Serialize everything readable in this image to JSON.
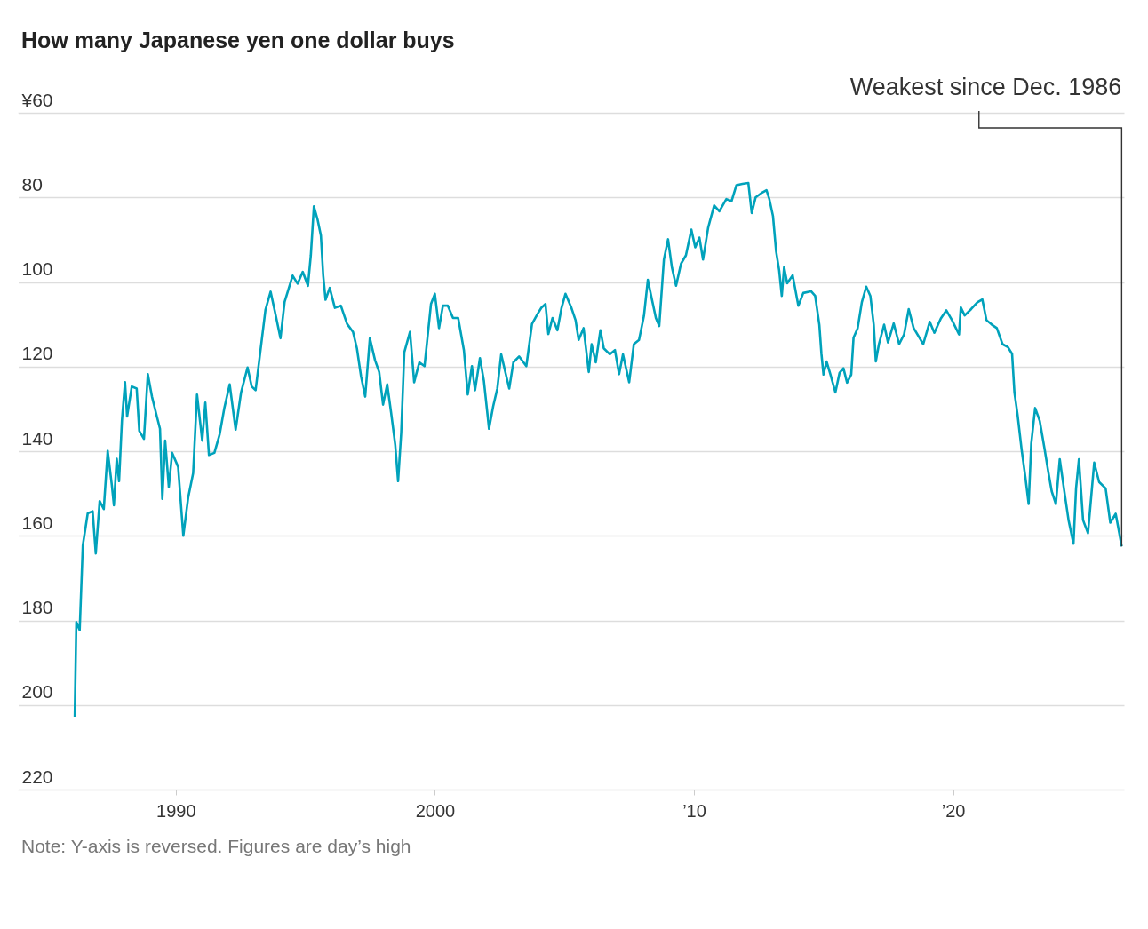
{
  "chart_data": {
    "type": "line",
    "title": "How many Japanese yen one dollar buys",
    "x": [
      1986.1,
      1986.16,
      1986.29,
      1986.41,
      1986.6,
      1986.79,
      1986.91,
      1987.06,
      1987.22,
      1987.37,
      1987.53,
      1987.61,
      1987.72,
      1987.81,
      1987.92,
      1988.04,
      1988.12,
      1988.3,
      1988.49,
      1988.59,
      1988.77,
      1988.92,
      1989.08,
      1989.27,
      1989.39,
      1989.48,
      1989.59,
      1989.73,
      1989.86,
      1990.09,
      1990.29,
      1990.48,
      1990.67,
      1990.82,
      1991.02,
      1991.14,
      1991.28,
      1991.49,
      1991.69,
      1991.87,
      1992.08,
      1992.31,
      1992.52,
      1992.77,
      1992.93,
      1993.08,
      1993.24,
      1993.46,
      1993.66,
      1993.86,
      1994.04,
      1994.2,
      1994.51,
      1994.7,
      1994.9,
      1995.1,
      1995.21,
      1995.33,
      1995.47,
      1995.6,
      1995.69,
      1995.78,
      1995.94,
      1996.14,
      1996.37,
      1996.61,
      1996.84,
      1996.99,
      1997.15,
      1997.31,
      1997.49,
      1997.69,
      1997.85,
      1998.0,
      1998.16,
      1998.31,
      1998.47,
      1998.58,
      1998.7,
      1998.82,
      1999.04,
      1999.2,
      1999.4,
      1999.6,
      1999.85,
      2000.0,
      2000.16,
      2000.31,
      2000.5,
      2000.7,
      2000.9,
      2001.12,
      2001.27,
      2001.43,
      2001.55,
      2001.74,
      2001.89,
      2002.09,
      2002.25,
      2002.41,
      2002.56,
      2002.72,
      2002.87,
      2003.03,
      2003.25,
      2003.53,
      2003.75,
      2003.96,
      2004.11,
      2004.27,
      2004.38,
      2004.54,
      2004.73,
      2004.89,
      2005.04,
      2005.27,
      2005.43,
      2005.55,
      2005.74,
      2005.94,
      2006.05,
      2006.21,
      2006.39,
      2006.52,
      2006.75,
      2006.95,
      2007.11,
      2007.26,
      2007.5,
      2007.68,
      2007.88,
      2008.07,
      2008.22,
      2008.38,
      2008.53,
      2008.66,
      2008.84,
      2009.0,
      2009.15,
      2009.31,
      2009.5,
      2009.69,
      2009.9,
      2010.05,
      2010.21,
      2010.35,
      2010.55,
      2010.78,
      2010.98,
      2011.25,
      2011.45,
      2011.64,
      2011.87,
      2012.1,
      2012.23,
      2012.38,
      2012.6,
      2012.8,
      2012.91,
      2013.05,
      2013.17,
      2013.29,
      2013.39,
      2013.48,
      2013.6,
      2013.81,
      2014.03,
      2014.22,
      2014.52,
      2014.68,
      2014.84,
      2014.92,
      2015.0,
      2015.12,
      2015.27,
      2015.46,
      2015.62,
      2015.77,
      2015.91,
      2016.07,
      2016.16,
      2016.32,
      2016.48,
      2016.65,
      2016.81,
      2016.94,
      2017.02,
      2017.14,
      2017.34,
      2017.49,
      2017.71,
      2017.92,
      2018.11,
      2018.29,
      2018.48,
      2018.85,
      2019.1,
      2019.28,
      2019.53,
      2019.74,
      2019.96,
      2020.23,
      2020.3,
      2020.45,
      2020.7,
      2020.94,
      2021.13,
      2021.29,
      2021.5,
      2021.69,
      2021.91,
      2022.12,
      2022.28,
      2022.37,
      2022.49,
      2022.65,
      2022.8,
      2022.92,
      2023.02,
      2023.17,
      2023.35,
      2023.54,
      2023.68,
      2023.81,
      2023.97,
      2024.12,
      2024.28,
      2024.46,
      2024.65,
      2024.75,
      2024.86,
      2025.02,
      2025.21,
      2025.45,
      2025.64,
      2025.89,
      2026.07,
      2026.28,
      2026.44,
      2026.51
    ],
    "series": [
      {
        "color": "#00a2bb",
        "values": [
          202.8,
          180.4,
          182.3,
          162.3,
          154.7,
          154.2,
          164.2,
          151.8,
          153.7,
          139.9,
          148,
          152.8,
          141.8,
          147.1,
          132.8,
          123.7,
          131.8,
          124.7,
          125.2,
          135.2,
          137.1,
          121.8,
          127.1,
          131.8,
          134.7,
          151.3,
          137.5,
          148.5,
          140.4,
          143.7,
          160,
          150.9,
          145.2,
          126.6,
          137.5,
          128.5,
          140.9,
          140.4,
          136.1,
          129.9,
          124.2,
          134.9,
          126.1,
          120.2,
          124.7,
          125.6,
          117.6,
          106.6,
          102.3,
          108,
          113.3,
          104.7,
          98.5,
          100.4,
          97.6,
          100.9,
          93.8,
          82.1,
          85.2,
          89,
          98.5,
          104.2,
          101.4,
          106.1,
          105.6,
          109.9,
          111.8,
          115.7,
          122.3,
          127.1,
          113.3,
          118.5,
          121.3,
          129,
          124.2,
          130.9,
          138.5,
          147.1,
          135.7,
          116.6,
          111.8,
          123.7,
          119,
          119.9,
          105.2,
          102.8,
          110.9,
          105.6,
          105.6,
          108.5,
          108.5,
          116.1,
          126.6,
          119.9,
          125.6,
          118,
          123.3,
          134.7,
          129.4,
          125.2,
          117.1,
          121.3,
          125.2,
          119,
          117.6,
          119.9,
          109.9,
          107.6,
          106.1,
          105.2,
          112.3,
          108.5,
          111.4,
          106.1,
          102.8,
          106.1,
          109,
          113.7,
          110.9,
          121.3,
          114.7,
          119,
          111.4,
          115.7,
          117.1,
          116.1,
          121.8,
          117.1,
          123.7,
          114.7,
          113.7,
          108,
          99.5,
          104.2,
          108.5,
          110.4,
          94.7,
          89.9,
          96.6,
          100.9,
          95.7,
          93.7,
          87.6,
          91.8,
          89.5,
          94.7,
          87.1,
          81.9,
          83.3,
          80.4,
          80.9,
          77.1,
          76.8,
          76.6,
          83.7,
          80,
          79,
          78.3,
          80.4,
          84.4,
          92.7,
          97.3,
          103.3,
          96.5,
          100.3,
          98.4,
          105.6,
          102.6,
          102.2,
          103.3,
          110.1,
          117,
          121.9,
          118.8,
          121.9,
          126.1,
          121.5,
          120.4,
          123.8,
          121.9,
          113.2,
          110.9,
          104.8,
          101.1,
          103.3,
          110.1,
          118.8,
          114.7,
          110.1,
          114.3,
          109.8,
          114.7,
          112.4,
          106.4,
          110.9,
          114.7,
          109.4,
          112,
          108.6,
          106.7,
          109,
          112.4,
          106,
          107.9,
          106.4,
          104.8,
          104.1,
          109,
          110.1,
          110.9,
          114.7,
          115.4,
          117,
          126.1,
          131.3,
          139.7,
          146.5,
          152.5,
          138.2,
          129.8,
          132.9,
          139.7,
          145,
          149.5,
          152.5,
          141.9,
          148.8,
          156.3,
          161.9,
          148.8,
          141.9,
          156.3,
          159.4,
          142.7,
          147.3,
          148.8,
          156.9,
          154.8,
          160.1,
          162.5
        ]
      }
    ],
    "xlim": [
      1983.9,
      2026.6
    ],
    "xticks": [
      1990,
      2000,
      {
        "value": 2010,
        "label": "’10"
      },
      {
        "value": 2020,
        "label": "’20"
      }
    ],
    "ylim": [
      220,
      60
    ],
    "yticks": [
      {
        "value": 60,
        "label": "¥60"
      },
      80,
      100,
      120,
      140,
      160,
      180,
      200,
      220
    ],
    "grid": "y",
    "annotations": [
      {
        "text": "Weakest since Dec. 1986",
        "x": 2026.51,
        "y": 162.5
      },
      "Note: Y-axis is reversed. Figures are day’s high"
    ]
  }
}
